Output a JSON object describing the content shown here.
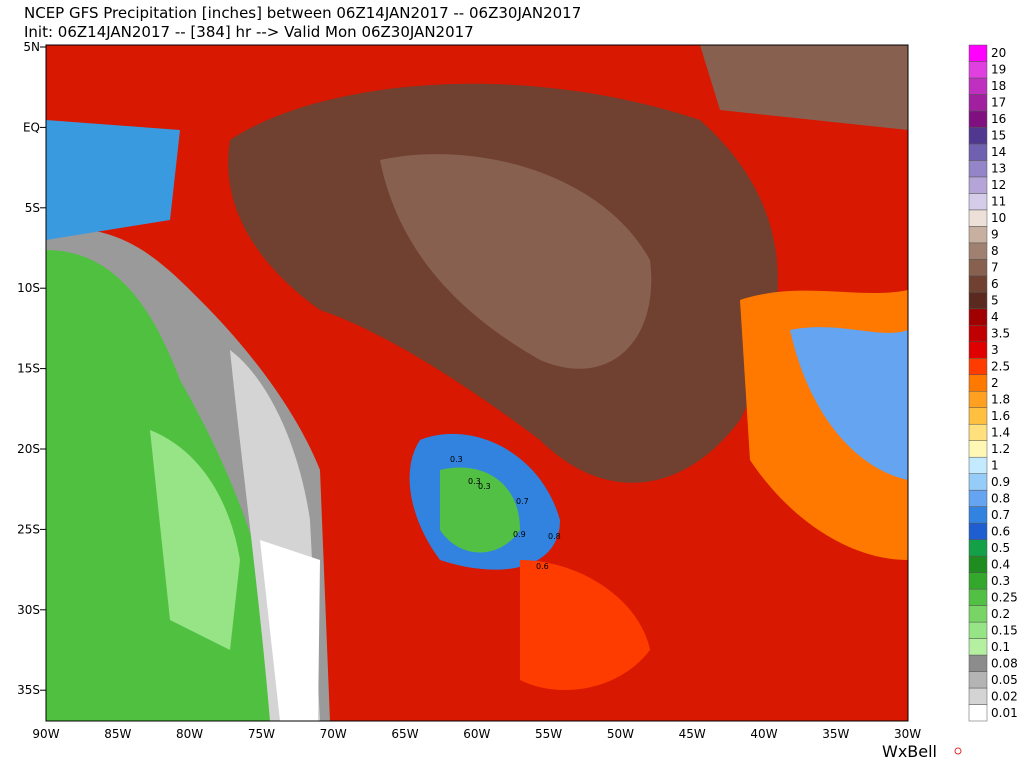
{
  "header": {
    "title": "NCEP GFS Precipitation [inches] between 06Z14JAN2017 -- 06Z30JAN2017",
    "subtitle": "Init: 06Z14JAN2017 -- [384] hr --> Valid Mon 06Z30JAN2017"
  },
  "map": {
    "lat_labels": [
      "5N",
      "EQ",
      "5S",
      "10S",
      "15S",
      "20S",
      "25S",
      "30S",
      "35S"
    ],
    "lon_labels": [
      "90W",
      "85W",
      "80W",
      "75W",
      "70W",
      "65W",
      "60W",
      "55W",
      "50W",
      "45W",
      "40W",
      "35W",
      "30W"
    ],
    "contour_labels": [
      "0.3",
      "0.3",
      "0.3",
      "0.7",
      "0.9",
      "0.8",
      "0.6"
    ]
  },
  "colorbar": {
    "items": [
      {
        "label": "0.01",
        "color": "#ffffff"
      },
      {
        "label": "0.02",
        "color": "#d4d4d4"
      },
      {
        "label": "0.05",
        "color": "#b4b4b4"
      },
      {
        "label": "0.08",
        "color": "#8c8c8c"
      },
      {
        "label": "0.1",
        "color": "#b4f0a0"
      },
      {
        "label": "0.15",
        "color": "#96e486"
      },
      {
        "label": "0.2",
        "color": "#78d464"
      },
      {
        "label": "0.25",
        "color": "#52c044"
      },
      {
        "label": "0.3",
        "color": "#34a82c"
      },
      {
        "label": "0.4",
        "color": "#1e8c1e"
      },
      {
        "label": "0.5",
        "color": "#14a046"
      },
      {
        "label": "0.6",
        "color": "#1e5ed0"
      },
      {
        "label": "0.7",
        "color": "#3282e0"
      },
      {
        "label": "0.8",
        "color": "#64a4f0"
      },
      {
        "label": "0.9",
        "color": "#96ccf8"
      },
      {
        "label": "1",
        "color": "#c4eaff"
      },
      {
        "label": "1.2",
        "color": "#fff8b4"
      },
      {
        "label": "1.4",
        "color": "#ffe07c"
      },
      {
        "label": "1.6",
        "color": "#ffc040"
      },
      {
        "label": "1.8",
        "color": "#ffa020"
      },
      {
        "label": "2",
        "color": "#ff7800"
      },
      {
        "label": "2.5",
        "color": "#ff3c00"
      },
      {
        "label": "3",
        "color": "#e00000"
      },
      {
        "label": "3.5",
        "color": "#c00000"
      },
      {
        "label": "4",
        "color": "#a00000"
      },
      {
        "label": "5",
        "color": "#5a2a20"
      },
      {
        "label": "6",
        "color": "#704030"
      },
      {
        "label": "7",
        "color": "#886050"
      },
      {
        "label": "8",
        "color": "#a08070"
      },
      {
        "label": "9",
        "color": "#c8b0a0"
      },
      {
        "label": "10",
        "color": "#ece0d8"
      },
      {
        "label": "11",
        "color": "#d4cce8"
      },
      {
        "label": "12",
        "color": "#b4a4d8"
      },
      {
        "label": "13",
        "color": "#9484c8"
      },
      {
        "label": "14",
        "color": "#7060b0"
      },
      {
        "label": "15",
        "color": "#503890"
      },
      {
        "label": "16",
        "color": "#801080"
      },
      {
        "label": "17",
        "color": "#a020a0"
      },
      {
        "label": "18",
        "color": "#c030c0"
      },
      {
        "label": "19",
        "color": "#e040e0"
      },
      {
        "label": "20",
        "color": "#ff00ff"
      }
    ]
  },
  "footer": {
    "logo": "WxBell"
  }
}
